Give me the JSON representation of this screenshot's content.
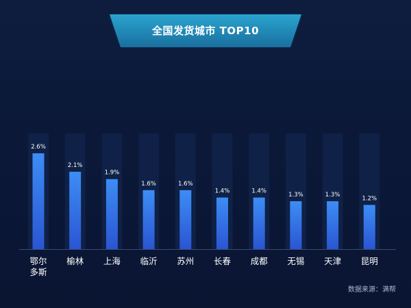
{
  "chart_data": {
    "type": "bar",
    "title": "全国发货城市 TOP10",
    "categories": [
      "鄂尔多斯",
      "榆林",
      "上海",
      "临沂",
      "苏州",
      "长春",
      "成都",
      "无锡",
      "天津",
      "昆明"
    ],
    "category_lines": [
      [
        "鄂尔",
        "多斯"
      ],
      [
        "榆林"
      ],
      [
        "上海"
      ],
      [
        "临沂"
      ],
      [
        "苏州"
      ],
      [
        "长春"
      ],
      [
        "成都"
      ],
      [
        "无锡"
      ],
      [
        "天津"
      ],
      [
        "昆明"
      ]
    ],
    "values": [
      2.6,
      2.1,
      1.9,
      1.6,
      1.6,
      1.4,
      1.4,
      1.3,
      1.3,
      1.2
    ],
    "value_labels": [
      "2.6%",
      "2.1%",
      "1.9%",
      "1.6%",
      "1.6%",
      "1.4%",
      "1.4%",
      "1.3%",
      "1.3%",
      "1.2%"
    ],
    "unit": "%",
    "ylim": [
      0,
      3.2
    ],
    "grid": false,
    "legend": "none",
    "colors": {
      "bar_top": "#3d8df5",
      "bar_bottom": "#2a55d2",
      "track": "#0f2147",
      "axis": "#3a4d74",
      "label": "#ffffff",
      "banner": "#1f8fb8",
      "banner_edge": "#33b5e0"
    }
  },
  "source": "数据来源：满帮"
}
